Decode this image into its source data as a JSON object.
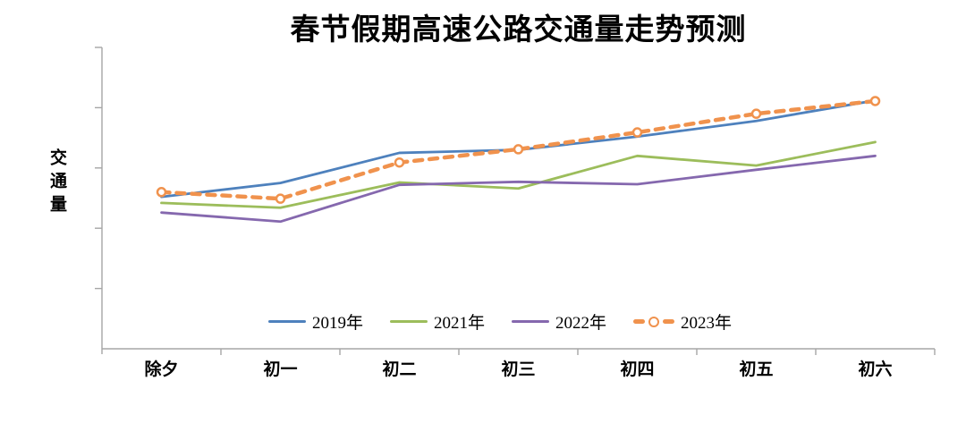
{
  "chart_data": {
    "type": "line",
    "title": "春节假期高速公路交通量走势预测",
    "ylabel": "交通量",
    "xlabel": "",
    "categories": [
      "除夕",
      "初一",
      "初二",
      "初三",
      "初四",
      "初五",
      "初六"
    ],
    "series": [
      {
        "name": "2019年",
        "color": "#4E81BD",
        "style": "solid",
        "marker": "none",
        "values": [
          2.52,
          2.75,
          3.25,
          3.3,
          3.52,
          3.78,
          4.12
        ]
      },
      {
        "name": "2021年",
        "color": "#9CBD5B",
        "style": "solid",
        "marker": "none",
        "values": [
          2.42,
          2.34,
          2.76,
          2.66,
          3.2,
          3.04,
          3.43
        ]
      },
      {
        "name": "2022年",
        "color": "#8568AE",
        "style": "solid",
        "marker": "none",
        "values": [
          2.26,
          2.11,
          2.72,
          2.77,
          2.73,
          2.97,
          3.2
        ]
      },
      {
        "name": "2023年",
        "color": "#F0924D",
        "style": "dashed",
        "marker": "open-circle",
        "values": [
          2.6,
          2.49,
          3.09,
          3.31,
          3.59,
          3.9,
          4.11
        ]
      }
    ],
    "ylim": [
      0,
      5
    ],
    "y_tick_interval": 1,
    "y_tick_labels_visible": false,
    "grid": false,
    "legend_position": "bottom-inside",
    "axis_color": "#A6A6A6"
  }
}
